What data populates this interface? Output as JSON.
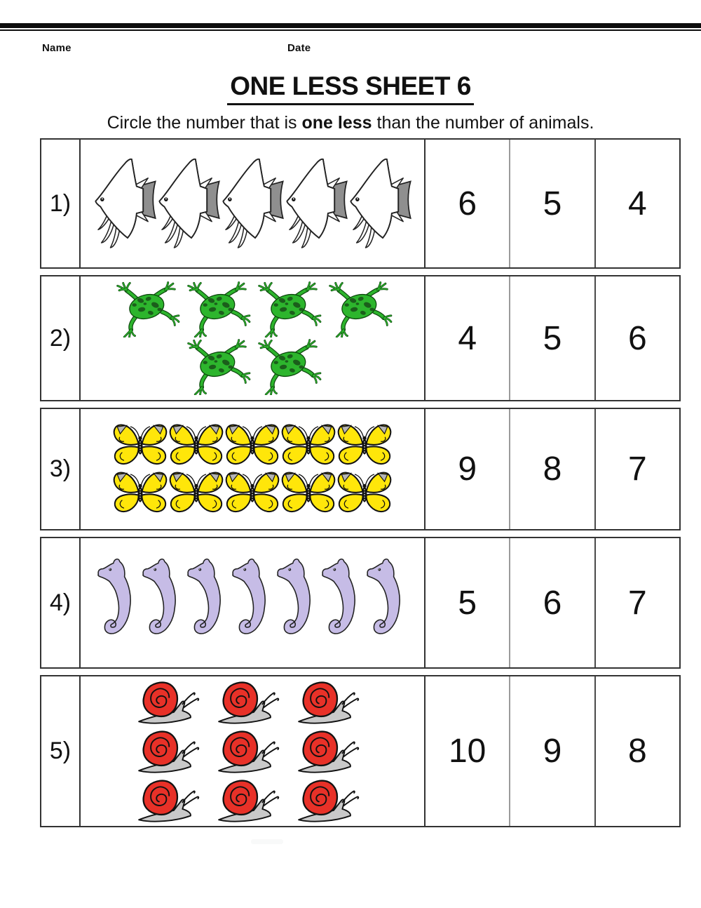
{
  "page": {
    "name_label": "Name",
    "date_label": "Date",
    "title": "ONE LESS SHEET 6",
    "instruction": {
      "pre": "Circle the number that is ",
      "emphasis": "one less",
      "post": " than the number of animals."
    }
  },
  "colors": {
    "fish_gray": "#8f8f8f",
    "frog_green": "#2db52d",
    "frog_spot": "#1b5e1b",
    "butterfly_yellow": "#ffe60a",
    "butterfly_gray": "#b5b5b5",
    "seahorse_lavender": "#c6bce6",
    "snail_red": "#e83128",
    "snail_gray": "#c9c9c9",
    "ink": "#111111"
  },
  "rows": [
    {
      "label": "1)",
      "animal": "fish",
      "animal_name": "angelfish",
      "count": 5,
      "arrangement": [
        5
      ],
      "options": [
        "6",
        "5",
        "4"
      ]
    },
    {
      "label": "2)",
      "animal": "frog",
      "animal_name": "frog",
      "count": 6,
      "arrangement": [
        4,
        2
      ],
      "options": [
        "4",
        "5",
        "6"
      ]
    },
    {
      "label": "3)",
      "animal": "butterfly",
      "animal_name": "butterfly",
      "count": 10,
      "arrangement": [
        5,
        5
      ],
      "options": [
        "9",
        "8",
        "7"
      ]
    },
    {
      "label": "4)",
      "animal": "seahorse",
      "animal_name": "seahorse",
      "count": 7,
      "arrangement": [
        7
      ],
      "options": [
        "5",
        "6",
        "7"
      ]
    },
    {
      "label": "5)",
      "animal": "snail",
      "animal_name": "snail",
      "count": 9,
      "arrangement": [
        3,
        3,
        3
      ],
      "options": [
        "10",
        "9",
        "8"
      ]
    }
  ]
}
